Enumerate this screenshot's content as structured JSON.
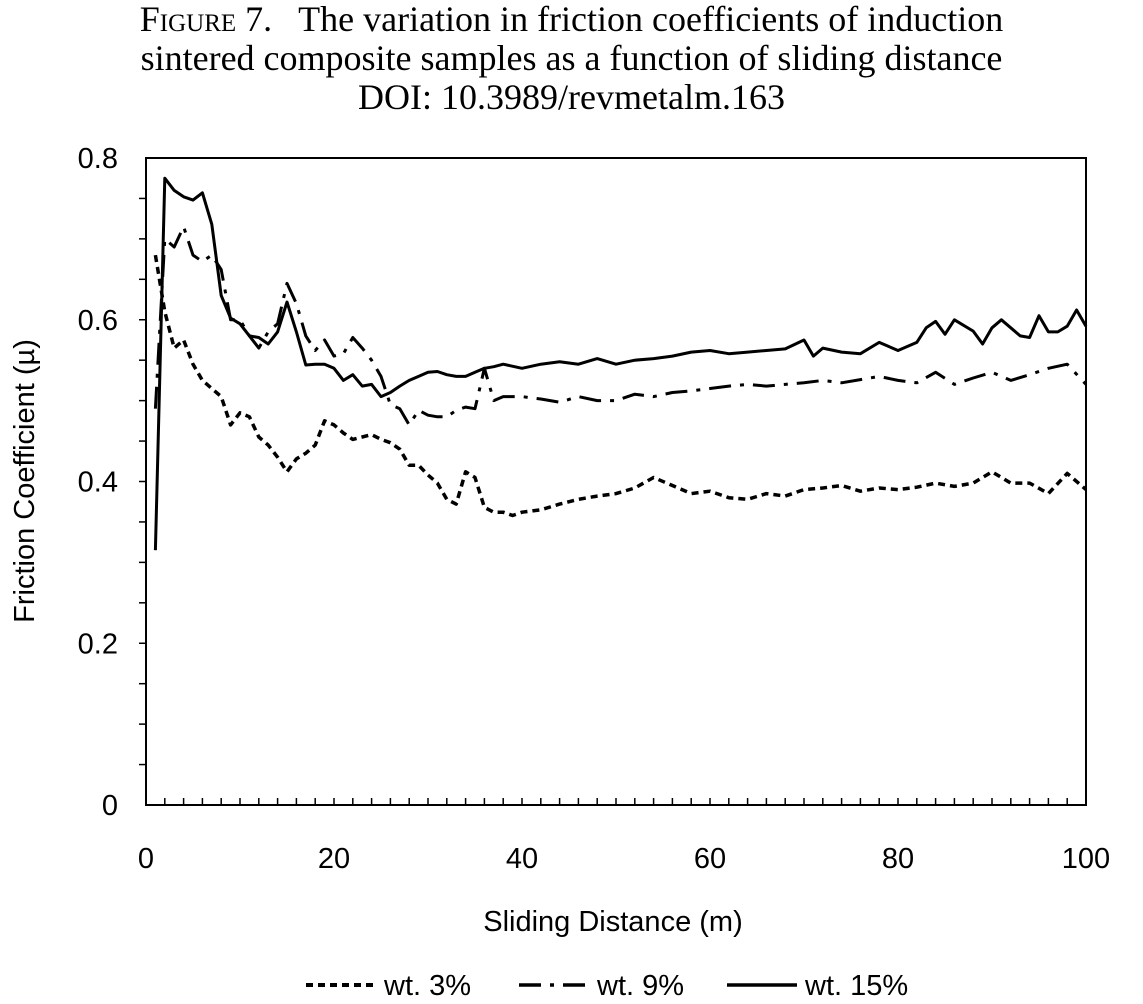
{
  "caption": {
    "figure_label": "Figure 7.",
    "line1_text": "The variation in friction coefficients of induction",
    "line2": "sintered composite samples as a function of sliding distance",
    "line3": "DOI: 10.3989/revmetalm.163"
  },
  "chart_data": {
    "type": "line",
    "xlabel": "Sliding Distance (m)",
    "ylabel": "Friction Coefficient (µ)",
    "xlim": [
      0,
      100
    ],
    "ylim": [
      0,
      0.8
    ],
    "x_ticks": [
      "0",
      "20",
      "40",
      "60",
      "80",
      "100"
    ],
    "y_ticks": [
      "0",
      "0.2",
      "0.4",
      "0.6",
      "0.8"
    ],
    "grid": false,
    "legend_position": "bottom",
    "series": [
      {
        "name": "wt. 3%",
        "line_style": "dotted",
        "x": [
          1,
          2,
          3,
          4,
          5,
          6,
          7,
          8,
          9,
          10,
          11,
          12,
          13,
          14,
          15,
          16,
          17,
          18,
          19,
          20,
          21,
          22,
          23,
          24,
          25,
          26,
          27,
          28,
          29,
          30,
          31,
          32,
          33,
          34,
          35,
          36,
          37,
          38,
          39,
          40,
          42,
          44,
          46,
          48,
          50,
          52,
          54,
          56,
          58,
          60,
          62,
          64,
          66,
          68,
          70,
          72,
          74,
          76,
          78,
          80,
          82,
          84,
          86,
          88,
          90,
          92,
          94,
          96,
          98,
          100
        ],
        "y": [
          0.68,
          0.61,
          0.565,
          0.575,
          0.545,
          0.525,
          0.515,
          0.505,
          0.47,
          0.485,
          0.48,
          0.455,
          0.445,
          0.43,
          0.412,
          0.428,
          0.435,
          0.445,
          0.475,
          0.47,
          0.46,
          0.452,
          0.455,
          0.458,
          0.452,
          0.448,
          0.44,
          0.42,
          0.42,
          0.408,
          0.398,
          0.378,
          0.372,
          0.412,
          0.405,
          0.368,
          0.362,
          0.362,
          0.358,
          0.362,
          0.365,
          0.372,
          0.378,
          0.382,
          0.385,
          0.392,
          0.405,
          0.395,
          0.385,
          0.388,
          0.38,
          0.378,
          0.385,
          0.382,
          0.39,
          0.392,
          0.395,
          0.388,
          0.392,
          0.39,
          0.393,
          0.398,
          0.394,
          0.398,
          0.412,
          0.398,
          0.398,
          0.385,
          0.41,
          0.39
        ]
      },
      {
        "name": "wt. 9%",
        "line_style": "dash-dot",
        "x": [
          1,
          2,
          3,
          4,
          5,
          6,
          7,
          8,
          9,
          10,
          11,
          12,
          13,
          14,
          15,
          16,
          17,
          18,
          19,
          20,
          21,
          22,
          23,
          24,
          25,
          26,
          27,
          28,
          29,
          30,
          31,
          32,
          33,
          34,
          35,
          36,
          37,
          38,
          40,
          42,
          44,
          46,
          48,
          50,
          52,
          54,
          56,
          58,
          60,
          62,
          64,
          66,
          68,
          70,
          72,
          74,
          76,
          78,
          80,
          82,
          84,
          86,
          88,
          90,
          92,
          94,
          96,
          98,
          100
        ],
        "y": [
          0.49,
          0.7,
          0.69,
          0.715,
          0.68,
          0.672,
          0.68,
          0.662,
          0.6,
          0.6,
          0.58,
          0.565,
          0.585,
          0.595,
          0.645,
          0.62,
          0.58,
          0.562,
          0.575,
          0.555,
          0.558,
          0.578,
          0.565,
          0.55,
          0.53,
          0.495,
          0.49,
          0.47,
          0.488,
          0.482,
          0.48,
          0.48,
          0.488,
          0.492,
          0.49,
          0.54,
          0.5,
          0.505,
          0.505,
          0.502,
          0.498,
          0.505,
          0.5,
          0.5,
          0.508,
          0.505,
          0.51,
          0.512,
          0.515,
          0.518,
          0.52,
          0.518,
          0.52,
          0.522,
          0.525,
          0.522,
          0.526,
          0.53,
          0.525,
          0.522,
          0.535,
          0.52,
          0.528,
          0.535,
          0.525,
          0.532,
          0.54,
          0.545,
          0.52
        ]
      },
      {
        "name": "wt. 15%",
        "line_style": "solid",
        "x": [
          1,
          2,
          3,
          4,
          5,
          6,
          7,
          8,
          9,
          10,
          11,
          12,
          13,
          14,
          15,
          16,
          17,
          18,
          19,
          20,
          21,
          22,
          23,
          24,
          25,
          26,
          27,
          28,
          29,
          30,
          31,
          32,
          33,
          34,
          35,
          36,
          37,
          38,
          40,
          42,
          44,
          46,
          48,
          50,
          52,
          54,
          56,
          58,
          60,
          62,
          64,
          66,
          68,
          70,
          71,
          72,
          74,
          76,
          78,
          80,
          82,
          83,
          84,
          85,
          86,
          88,
          89,
          90,
          91,
          93,
          94,
          95,
          96,
          97,
          98,
          99,
          100
        ],
        "y": [
          0.315,
          0.775,
          0.76,
          0.752,
          0.748,
          0.757,
          0.718,
          0.63,
          0.602,
          0.595,
          0.58,
          0.578,
          0.57,
          0.585,
          0.622,
          0.585,
          0.544,
          0.545,
          0.545,
          0.54,
          0.525,
          0.532,
          0.518,
          0.52,
          0.505,
          0.51,
          0.518,
          0.525,
          0.53,
          0.535,
          0.536,
          0.532,
          0.53,
          0.53,
          0.535,
          0.54,
          0.542,
          0.545,
          0.54,
          0.545,
          0.548,
          0.545,
          0.552,
          0.545,
          0.55,
          0.552,
          0.555,
          0.56,
          0.562,
          0.558,
          0.56,
          0.562,
          0.564,
          0.575,
          0.555,
          0.565,
          0.56,
          0.558,
          0.572,
          0.562,
          0.572,
          0.59,
          0.598,
          0.582,
          0.6,
          0.586,
          0.57,
          0.59,
          0.6,
          0.58,
          0.578,
          0.605,
          0.585,
          0.585,
          0.592,
          0.612,
          0.592
        ]
      }
    ]
  }
}
